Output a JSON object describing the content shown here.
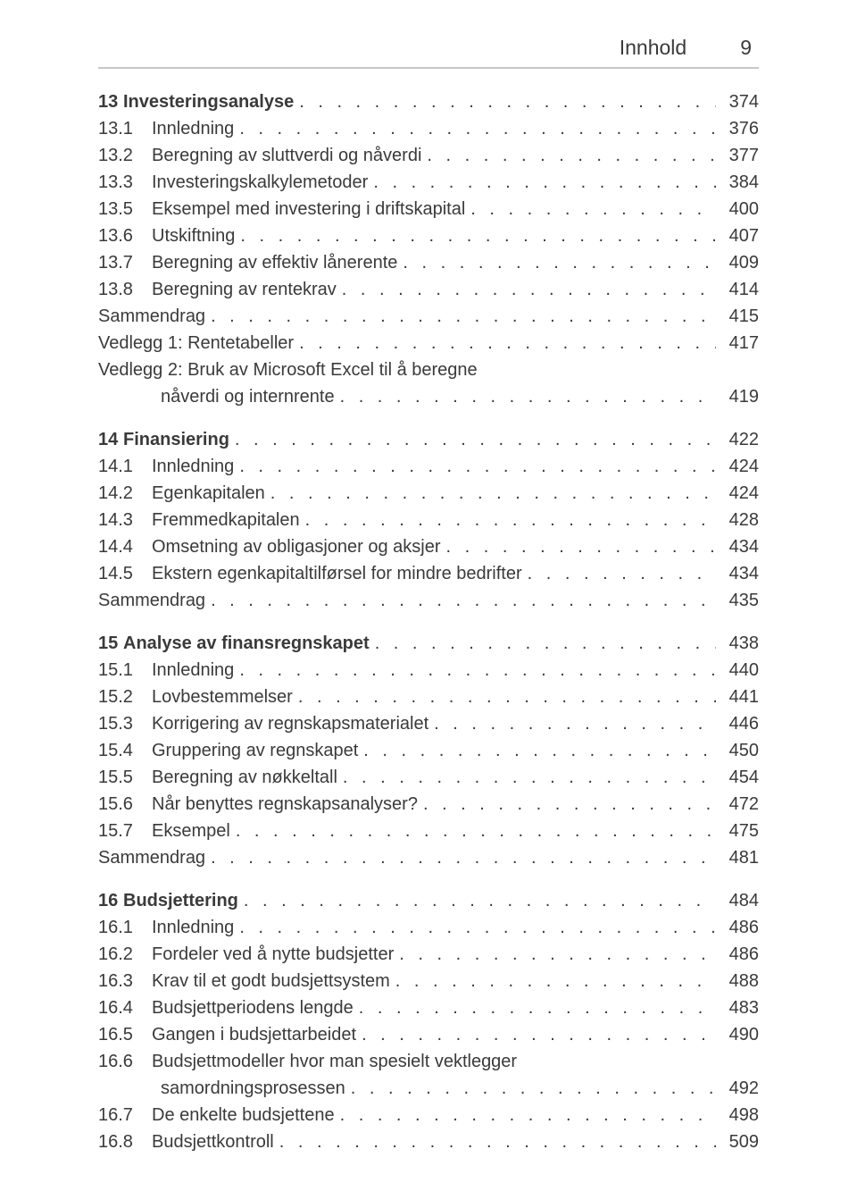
{
  "header": {
    "title": "Innhold",
    "page_number": "9"
  },
  "toc": [
    {
      "number": "13",
      "title": "Investeringsanalyse",
      "page": "374",
      "items": [
        {
          "number": "13.1",
          "title": "Innledning",
          "page": "376"
        },
        {
          "number": "13.2",
          "title": "Beregning av sluttverdi og nåverdi",
          "page": "377"
        },
        {
          "number": "13.3",
          "title": "Investeringskalkylemetoder",
          "page": "384"
        },
        {
          "number": "13.5",
          "title": "Eksempel med investering i driftskapital",
          "page": "400"
        },
        {
          "number": "13.6",
          "title": "Utskiftning",
          "page": "407"
        },
        {
          "number": "13.7",
          "title": "Beregning av effektiv lånerente",
          "page": "409"
        },
        {
          "number": "13.8",
          "title": "Beregning av rentekrav",
          "page": "414"
        },
        {
          "number": "",
          "title": "Sammendrag",
          "page": "415"
        },
        {
          "number": "",
          "title": "Vedlegg 1: Rentetabeller",
          "page": "417"
        },
        {
          "number": "",
          "title": "Vedlegg 2: Bruk av Microsoft Excel til å beregne",
          "page": ""
        },
        {
          "number": "",
          "title": "nåverdi og internrente",
          "page": "419",
          "indent": true
        }
      ]
    },
    {
      "number": "14",
      "title": "Finansiering",
      "page": "422",
      "items": [
        {
          "number": "14.1",
          "title": "Innledning",
          "page": "424"
        },
        {
          "number": "14.2",
          "title": "Egenkapitalen",
          "page": "424"
        },
        {
          "number": "14.3",
          "title": "Fremmedkapitalen",
          "page": "428"
        },
        {
          "number": "14.4",
          "title": "Omsetning av obligasjoner og aksjer",
          "page": "434"
        },
        {
          "number": "14.5",
          "title": "Ekstern egenkapitaltilførsel for mindre bedrifter",
          "page": "434"
        },
        {
          "number": "",
          "title": "Sammendrag",
          "page": "435"
        }
      ]
    },
    {
      "number": "15",
      "title": "Analyse av finansregnskapet",
      "page": "438",
      "items": [
        {
          "number": "15.1",
          "title": "Innledning",
          "page": "440"
        },
        {
          "number": "15.2",
          "title": "Lovbestemmelser",
          "page": "441"
        },
        {
          "number": "15.3",
          "title": "Korrigering av regnskapsmaterialet",
          "page": "446"
        },
        {
          "number": "15.4",
          "title": "Gruppering av regnskapet",
          "page": "450"
        },
        {
          "number": "15.5",
          "title": "Beregning av nøkkeltall",
          "page": "454"
        },
        {
          "number": "15.6",
          "title": "Når benyttes regnskapsanalyser?",
          "page": "472"
        },
        {
          "number": "15.7",
          "title": "Eksempel",
          "page": "475"
        },
        {
          "number": "",
          "title": "Sammendrag",
          "page": "481"
        }
      ]
    },
    {
      "number": "16",
      "title": "Budsjettering",
      "page": "484",
      "items": [
        {
          "number": "16.1",
          "title": "Innledning",
          "page": "486"
        },
        {
          "number": "16.2",
          "title": "Fordeler ved å nytte budsjetter",
          "page": "486"
        },
        {
          "number": "16.3",
          "title": "Krav til et godt budsjettsystem",
          "page": "488"
        },
        {
          "number": "16.4",
          "title": "Budsjettperiodens lengde",
          "page": "483"
        },
        {
          "number": "16.5",
          "title": "Gangen i budsjettarbeidet",
          "page": "490"
        },
        {
          "number": "16.6",
          "title": "Budsjettmodeller hvor man spesielt vektlegger",
          "page": ""
        },
        {
          "number": "",
          "title": "samordningsprosessen",
          "page": "492",
          "indent": true
        },
        {
          "number": "16.7",
          "title": "De enkelte budsjettene",
          "page": "498"
        },
        {
          "number": "16.8",
          "title": "Budsjettkontroll",
          "page": "509"
        }
      ]
    }
  ]
}
